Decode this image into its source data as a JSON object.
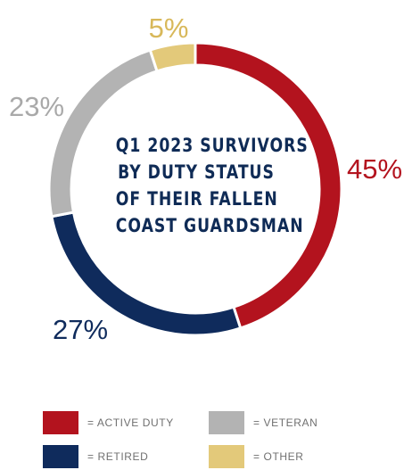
{
  "chart_data": {
    "type": "pie",
    "title": "Q1 2023 SURVIVORS BY DUTY STATUS OF THEIR FALLEN COAST GUARDSMAN",
    "title_lines": [
      "Q1 2023 SURVIVORS",
      "BY DUTY STATUS",
      "OF THEIR FALLEN",
      "COAST GUARDSMAN"
    ],
    "style": "donut",
    "categories": [
      "ACTIVE DUTY",
      "RETIRED",
      "VETERAN",
      "OTHER"
    ],
    "values": [
      45,
      27,
      23,
      5
    ],
    "value_labels": [
      "45%",
      "27%",
      "23%",
      "5%"
    ],
    "colors": [
      "#b3131e",
      "#0f2b5c",
      "#b3b3b3",
      "#e3c97a"
    ],
    "legend": {
      "position": "bottom",
      "items": [
        {
          "label": "= ACTIVE DUTY",
          "color": "#b3131e"
        },
        {
          "label": "= VETERAN",
          "color": "#b3b3b3"
        },
        {
          "label": "= RETIRED",
          "color": "#0f2b5c"
        },
        {
          "label": "= OTHER",
          "color": "#e3c97a"
        }
      ]
    }
  }
}
